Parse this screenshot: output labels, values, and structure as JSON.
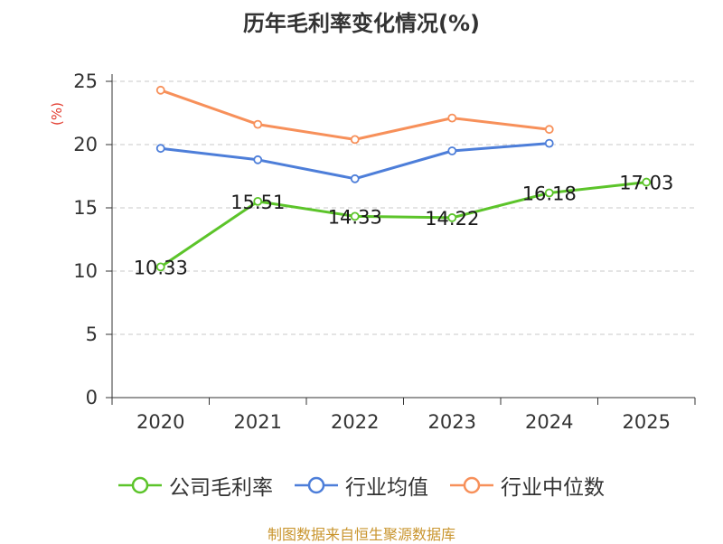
{
  "chart_data": {
    "type": "line",
    "title": "历年毛利率变化情况(%)",
    "ylabel": "(%)",
    "xlabel": "",
    "categories": [
      "2020",
      "2021",
      "2022",
      "2023",
      "2024",
      "2025"
    ],
    "ylim": [
      0,
      25
    ],
    "yticks": [
      0,
      5,
      10,
      15,
      20,
      25
    ],
    "grid": true,
    "legend_position": "bottom",
    "series": [
      {
        "name": "公司毛利率",
        "color": "#5cc42a",
        "values": [
          10.33,
          15.51,
          14.33,
          14.22,
          16.18,
          17.03
        ],
        "labels": [
          "10.33",
          "15.51",
          "14.33",
          "14.22",
          "16.18",
          "17.03"
        ]
      },
      {
        "name": "行业均值",
        "color": "#4d7ed9",
        "values": [
          19.7,
          18.8,
          17.3,
          19.5,
          20.1,
          null
        ]
      },
      {
        "name": "行业中位数",
        "color": "#f7905a",
        "values": [
          24.3,
          21.6,
          20.4,
          22.1,
          21.2,
          null
        ]
      }
    ]
  },
  "colors": {
    "ylabel": "#e23b2e",
    "source": "#c9952e"
  },
  "footer": {
    "source": "制图数据来自恒生聚源数据库"
  }
}
